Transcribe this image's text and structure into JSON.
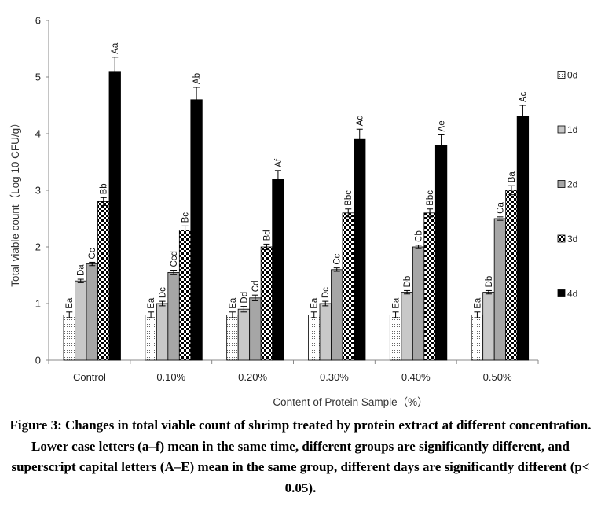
{
  "chart_data": {
    "type": "bar",
    "title": "",
    "xlabel": "Content of Protein Sample（%）",
    "ylabel": "Total viable count（Log 10 CFU/g）",
    "ylim": [
      0,
      6
    ],
    "yticks": [
      0,
      1,
      2,
      3,
      4,
      5,
      6
    ],
    "grid": false,
    "legend_position": "right",
    "categories": [
      "Control",
      "0.10%",
      "0.20%",
      "0.30%",
      "0.40%",
      "0.50%"
    ],
    "series": [
      {
        "name": "0d",
        "pattern": "dots",
        "values": [
          0.8,
          0.8,
          0.8,
          0.8,
          0.8,
          0.8
        ],
        "errors": [
          0.05,
          0.05,
          0.05,
          0.05,
          0.05,
          0.05
        ],
        "labels": [
          "Ea",
          "Ea",
          "Ea",
          "Ea",
          "Ea",
          "Ea"
        ]
      },
      {
        "name": "1d",
        "pattern": "light-gray",
        "values": [
          1.4,
          1.0,
          0.9,
          1.0,
          1.2,
          1.2
        ],
        "errors": [
          0.03,
          0.04,
          0.05,
          0.04,
          0.03,
          0.03
        ],
        "labels": [
          "Da",
          "Dc",
          "Dd",
          "Dc",
          "Db",
          "Db"
        ]
      },
      {
        "name": "2d",
        "pattern": "gray",
        "values": [
          1.7,
          1.55,
          1.1,
          1.6,
          2.0,
          2.5
        ],
        "errors": [
          0.03,
          0.04,
          0.05,
          0.03,
          0.03,
          0.03
        ],
        "labels": [
          "Cc",
          "Ccd",
          "Cd",
          "Cc",
          "Cb",
          "Ca"
        ]
      },
      {
        "name": "3d",
        "pattern": "checker",
        "values": [
          2.8,
          2.3,
          2.0,
          2.6,
          2.6,
          3.0
        ],
        "errors": [
          0.07,
          0.07,
          0.05,
          0.07,
          0.07,
          0.08
        ],
        "labels": [
          "Bb",
          "Bc",
          "Bd",
          "Bbc",
          "Bbc",
          "Ba"
        ]
      },
      {
        "name": "4d",
        "pattern": "black",
        "values": [
          5.1,
          4.6,
          3.2,
          3.9,
          3.8,
          4.3
        ],
        "errors": [
          0.25,
          0.22,
          0.15,
          0.18,
          0.18,
          0.2
        ],
        "labels": [
          "Aa",
          "Ab",
          "Af",
          "Ad",
          "Ae",
          "Ac"
        ]
      }
    ]
  },
  "caption": "Figure 3: Changes in total viable count of shrimp treated by protein extract at different concentration. Lower case letters (a–f) mean in the same time, different groups are significantly different, and superscript capital letters (A–E) mean in the same group, different days are significantly different (p< 0.05)."
}
